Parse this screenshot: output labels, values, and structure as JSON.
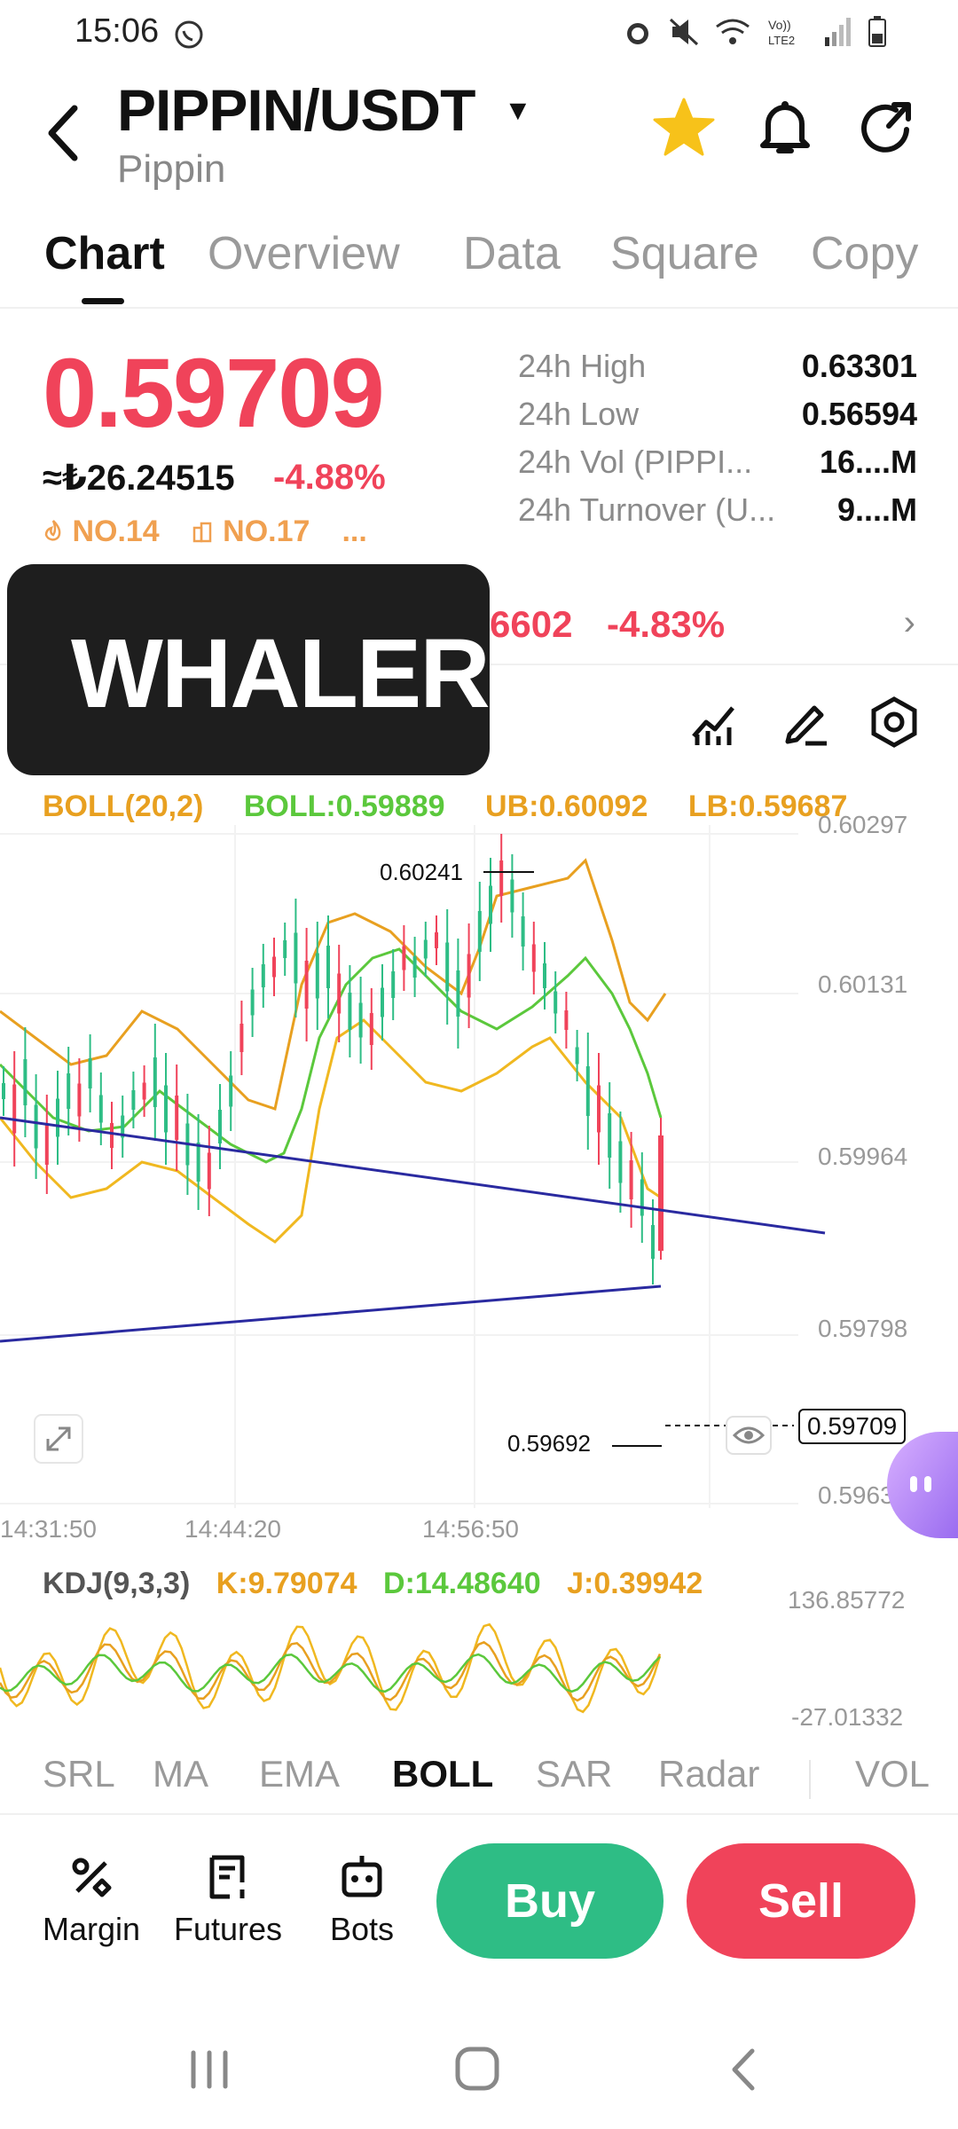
{
  "status_bar": {
    "time": "15:06",
    "icons": [
      "whatsapp-icon",
      "alarm-icon",
      "mute-icon",
      "wifi-icon",
      "volte-icon",
      "signal-icon",
      "battery-icon"
    ]
  },
  "header": {
    "pair": "PIPPIN/USDT",
    "name": "Pippin",
    "accent_star": "#f7c21a"
  },
  "tabs": [
    "Chart",
    "Overview",
    "Data",
    "Square",
    "Copy"
  ],
  "price": {
    "last": "0.59709",
    "local": "≈₺26.24515",
    "change": "-4.88%",
    "rank1": "NO.14",
    "rank2": "NO.17",
    "more": "..."
  },
  "stats": [
    {
      "label": "24h  High",
      "value": "0.63301"
    },
    {
      "label": "24h  Low",
      "value": "0.56594"
    },
    {
      "label": "24h  Vol (PIPPI...",
      "value": "16....M"
    },
    {
      "label": "24h  Turnover (U...",
      "value": "9....M"
    }
  ],
  "ticker": {
    "price": "6602",
    "change": "-4.83%"
  },
  "overlay": {
    "text": "WHALER"
  },
  "boll": {
    "params": "BOLL(20,2)",
    "mid": "BOLL:0.59889",
    "ub": "UB:0.60092",
    "lb": "LB:0.59687"
  },
  "chart_labels": {
    "y_ticks": [
      "0.60297",
      "0.60131",
      "0.59964",
      "0.59798",
      "0.59631"
    ],
    "x_ticks": [
      "14:31:50",
      "14:44:20",
      "14:56:50"
    ],
    "high_marker": "0.60241",
    "low_marker": "0.59692",
    "current": "0.59709"
  },
  "kdj": {
    "params": "KDJ(9,3,3)",
    "k": "K:9.79074",
    "d": "D:14.48640",
    "j": "J:0.39942",
    "max": "136.85772",
    "min": "-27.01332"
  },
  "indicator_tabs": [
    "SRL",
    "MA",
    "EMA",
    "BOLL",
    "SAR",
    "Radar",
    "VOL"
  ],
  "bottom": {
    "margin": "Margin",
    "futures": "Futures",
    "bots": "Bots",
    "buy": "Buy",
    "sell": "Sell"
  },
  "colors": {
    "up": "#2ebd85",
    "down": "#f0435a",
    "boll_mid": "#5bc83c",
    "boll_band": "#e8a020",
    "trend": "#2a2aa0"
  }
}
